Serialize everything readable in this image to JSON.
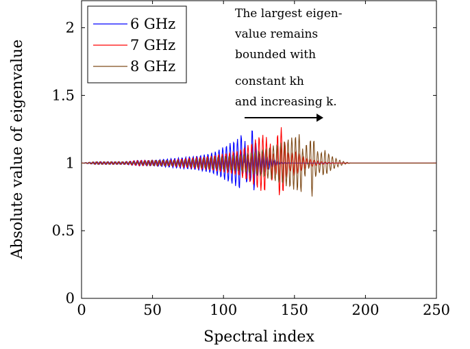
{
  "chart_data": {
    "type": "line",
    "title": "",
    "xlabel": "Spectral index",
    "ylabel": "Absolute value of eigenvalue",
    "xlim": [
      0,
      250
    ],
    "ylim": [
      0,
      2.2
    ],
    "xticks": [
      "0",
      "50",
      "100",
      "150",
      "200",
      "250"
    ],
    "yticks": [
      "0",
      "0.5",
      "1",
      "1.5",
      "2"
    ],
    "grid": false,
    "legend_position": "top-left",
    "series": [
      {
        "name": "6 GHz",
        "color": "#0000ff",
        "x": [
          0,
          10,
          20,
          30,
          40,
          50,
          60,
          70,
          80,
          90,
          95,
          100,
          105,
          110,
          113,
          115,
          117,
          120,
          123,
          125,
          128,
          130,
          135,
          140,
          150,
          160,
          170,
          200,
          250
        ],
        "y": [
          1.0,
          1.01,
          1.01,
          1.01,
          1.02,
          1.02,
          1.03,
          1.04,
          1.05,
          1.07,
          1.09,
          1.12,
          1.15,
          1.18,
          1.22,
          0.83,
          0.86,
          1.27,
          1.14,
          1.07,
          1.09,
          1.06,
          1.03,
          1.01,
          1.0,
          1.0,
          1.0,
          1.0,
          1.0
        ]
      },
      {
        "name": "7 GHz",
        "color": "#ff0000",
        "x": [
          0,
          10,
          20,
          30,
          40,
          50,
          60,
          70,
          80,
          90,
          100,
          110,
          115,
          120,
          125,
          130,
          133,
          135,
          138,
          141,
          144,
          147,
          150,
          155,
          160,
          170,
          180,
          200,
          250
        ],
        "y": [
          1.0,
          1.01,
          1.01,
          1.01,
          1.02,
          1.02,
          1.02,
          1.03,
          1.04,
          1.05,
          1.07,
          1.09,
          1.12,
          1.15,
          1.2,
          1.22,
          0.85,
          0.88,
          1.22,
          1.27,
          1.12,
          1.06,
          1.1,
          1.06,
          1.03,
          1.01,
          1.0,
          1.0,
          1.0
        ]
      },
      {
        "name": "8 GHz",
        "color": "#7f4c1a",
        "x": [
          0,
          10,
          20,
          30,
          40,
          50,
          60,
          70,
          80,
          90,
          100,
          110,
          120,
          130,
          140,
          150,
          155,
          158,
          160,
          162,
          165,
          168,
          171,
          175,
          180,
          185,
          190,
          200,
          250
        ],
        "y": [
          1.0,
          1.01,
          1.01,
          1.01,
          1.01,
          1.02,
          1.02,
          1.02,
          1.03,
          1.04,
          1.05,
          1.06,
          1.08,
          1.11,
          1.15,
          1.2,
          1.22,
          0.8,
          1.05,
          1.27,
          1.1,
          1.07,
          1.1,
          1.06,
          1.03,
          1.01,
          1.0,
          1.0,
          1.0
        ]
      }
    ],
    "annotation": {
      "lines": [
        "The largest eigen-",
        "value remains",
        "bounded with",
        "constant kh",
        "and increasing k."
      ],
      "arrow": "right"
    }
  }
}
